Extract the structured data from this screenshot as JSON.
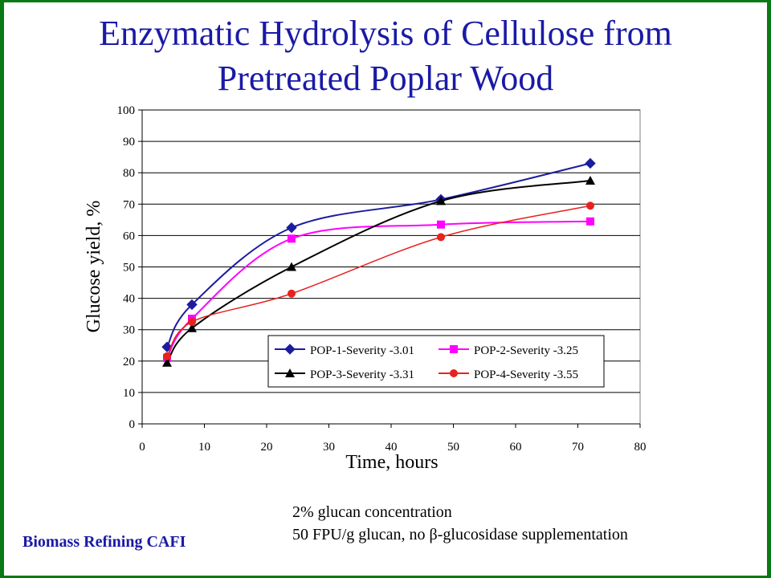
{
  "slide": {
    "title_line1": "Enzymatic Hydrolysis of Cellulose from",
    "title_line2": "Pretreated Poplar Wood",
    "note_line1": "2% glucan concentration",
    "note_line2": "50 FPU/g glucan, no β-glucosidase supplementation",
    "footer": "Biomass Refining CAFI",
    "accent_color": "#0a7a14",
    "title_color": "#1a1aa6"
  },
  "chart_data": {
    "type": "line",
    "title": "",
    "xlabel": "Time, hours",
    "ylabel": "Glucose yield, %",
    "xlim": [
      0,
      80
    ],
    "ylim": [
      0,
      100
    ],
    "xticks": [
      0,
      10,
      20,
      30,
      40,
      50,
      60,
      70,
      80
    ],
    "yticks": [
      0,
      10,
      20,
      30,
      40,
      50,
      60,
      70,
      80,
      90,
      100
    ],
    "grid": "horizontal",
    "legend_position": "inside-bottom-right",
    "series": [
      {
        "name": "POP-1-Severity -3.01",
        "color": "#1c1c9e",
        "marker": "diamond",
        "x": [
          4,
          8,
          24,
          48,
          72
        ],
        "y": [
          24.5,
          38,
          62.5,
          71.5,
          83
        ]
      },
      {
        "name": "POP-2-Severity -3.25",
        "color": "#ff00ff",
        "marker": "square",
        "x": [
          4,
          8,
          24,
          48,
          72
        ],
        "y": [
          21,
          33.5,
          59,
          63.5,
          64.5
        ]
      },
      {
        "name": "POP-3-Severity -3.31",
        "color": "#000000",
        "marker": "triangle",
        "x": [
          4,
          8,
          24,
          48,
          72
        ],
        "y": [
          19.5,
          30.5,
          50,
          71,
          77.5
        ]
      },
      {
        "name": "POP-4-Severity -3.55",
        "color": "#e8221e",
        "marker": "circle",
        "x": [
          4,
          8,
          24,
          48,
          72
        ],
        "y": [
          21.5,
          32.5,
          41.5,
          59.5,
          69.5
        ]
      }
    ]
  }
}
